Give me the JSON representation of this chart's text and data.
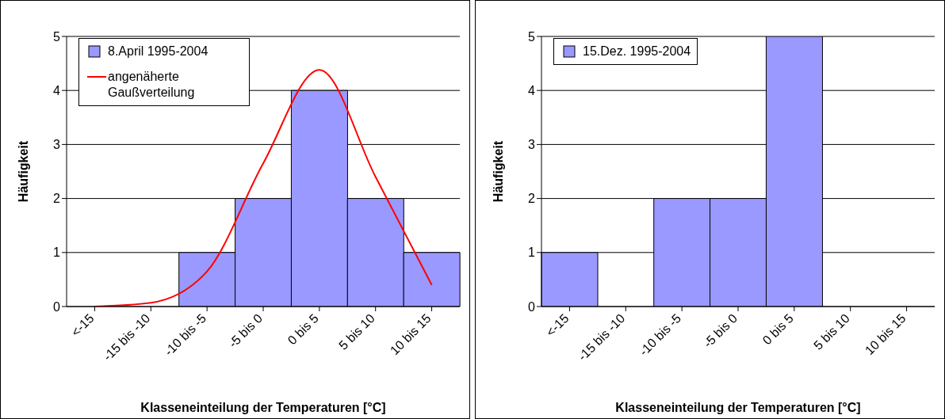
{
  "chart_data": [
    {
      "type": "bar",
      "xlabel": "Klasseneinteilung der Temperaturen [°C]",
      "ylabel": "Häufigkeit",
      "categories": [
        "<-15",
        "-15 bis -10",
        "-10 bis -5",
        "-5 bis 0",
        "0 bis 5",
        "5 bis 10",
        "10 bis 15"
      ],
      "series": [
        {
          "name": "8.April 1995-2004",
          "color": "#9999ff",
          "values": [
            0,
            0,
            1,
            2,
            4,
            2,
            1
          ]
        },
        {
          "name": "angenäherte Gaußverteilung",
          "type": "line",
          "color": "#ff0000",
          "values": [
            0,
            0.07,
            0.65,
            2.65,
            4.38,
            2.4,
            0.4
          ]
        }
      ],
      "ylim": [
        0,
        5
      ],
      "yticks": [
        0,
        1,
        2,
        3,
        4,
        5
      ],
      "grid": "y",
      "legend": "top left",
      "marker": "none"
    },
    {
      "type": "bar",
      "xlabel": "Klasseneinteilung der Temperaturen [°C]",
      "ylabel": "Häufigkeit",
      "categories": [
        "<-15",
        "-15 bis -10",
        "-10 bis -5",
        "-5 bis 0",
        "0 bis 5",
        "5 bis 10",
        "10 bis 15"
      ],
      "series": [
        {
          "name": "15.Dez. 1995-2004",
          "color": "#9999ff",
          "values": [
            1,
            0,
            2,
            2,
            5,
            0,
            0
          ]
        }
      ],
      "ylim": [
        0,
        5
      ],
      "yticks": [
        0,
        1,
        2,
        3,
        4,
        5
      ],
      "grid": "y",
      "legend": "top left"
    }
  ]
}
